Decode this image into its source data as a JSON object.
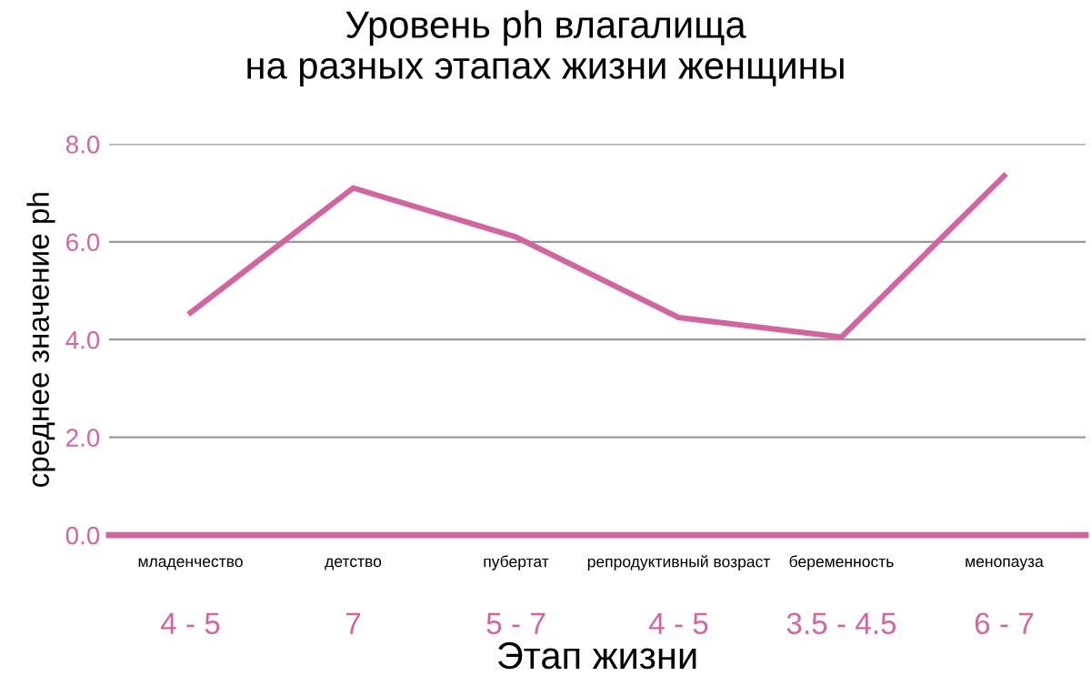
{
  "chart_data": {
    "type": "line",
    "title": "Уровень ph влагалища\nна разных этапах жизни женщины",
    "xlabel": "Этап жизни",
    "ylabel": "среднее значение ph",
    "categories": [
      "младенчество",
      "детство",
      "пубертат",
      "репродуктивный возраст",
      "беременность",
      "менопауза"
    ],
    "series": [
      {
        "color": "#d4649f",
        "values": [
          4.55,
          7.1,
          6.1,
          4.45,
          4.05,
          7.35
        ]
      }
    ],
    "ylim": [
      0,
      8
    ],
    "yticks": [
      {
        "value": 0,
        "label": "0.0"
      },
      {
        "value": 2,
        "label": "2.0"
      },
      {
        "value": 4,
        "label": "4.0"
      },
      {
        "value": 6,
        "label": "6.0"
      },
      {
        "value": 8,
        "label": "8.0"
      }
    ],
    "grid": "y",
    "marker": "none",
    "line_style": "solid",
    "annotations": [
      "4 - 5",
      "7",
      "5 - 7",
      "4 - 5",
      "3.5 - 4.5",
      "6 - 7"
    ]
  }
}
